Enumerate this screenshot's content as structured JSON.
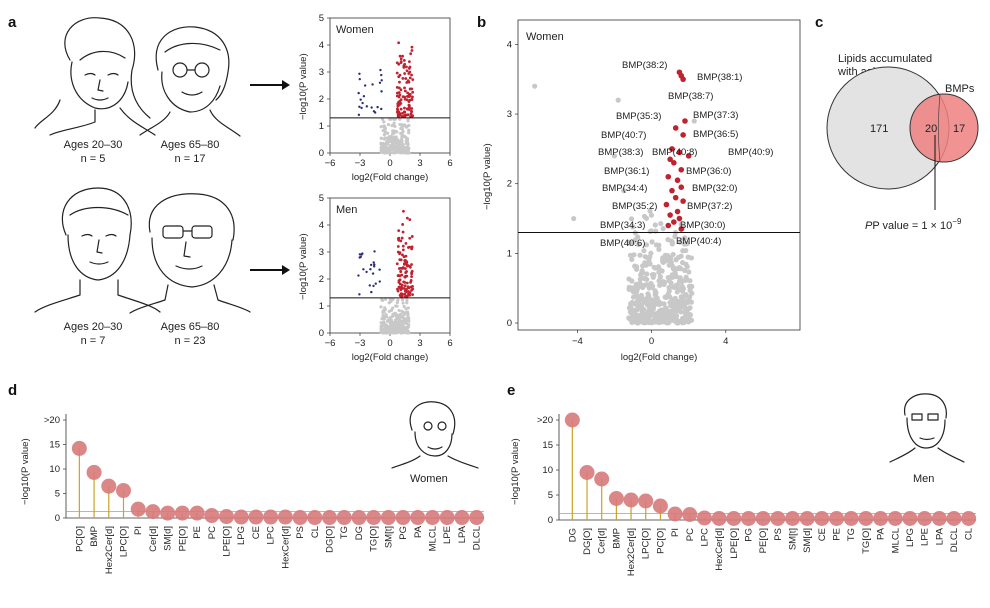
{
  "panels": {
    "a": "a",
    "b": "b",
    "c": "c",
    "d": "d",
    "e": "e"
  },
  "panel_a": {
    "groups": [
      {
        "ages": "Ages 20–30",
        "n_label": "n = 5"
      },
      {
        "ages": "Ages 65–80",
        "n_label": "n = 17"
      },
      {
        "ages": "Ages 20–30",
        "n_label": "n = 7"
      },
      {
        "ages": "Ages 65–80",
        "n_label": "n = 23"
      }
    ],
    "volcano_women_label": "Women",
    "volcano_men_label": "Men",
    "xlabel": "log2(Fold change)",
    "ylabel": "−log10(P value)",
    "xticks": [
      "−6",
      "−3",
      "0",
      "3",
      "6"
    ],
    "yticks": [
      "0",
      "1",
      "2",
      "3",
      "4",
      "5"
    ]
  },
  "panel_b": {
    "label": "Women",
    "xlabel": "log2(Fold change)",
    "ylabel": "−log10(P value)",
    "xticks": [
      "−4",
      "0",
      "4"
    ],
    "yticks": [
      "0",
      "1",
      "2",
      "3",
      "4"
    ],
    "bmp_labels": [
      "BMP(38:2)",
      "BMP(38:1)",
      "BMP(38:7)",
      "BMP(37:3)",
      "BMP(35:3)",
      "BMP(36:5)",
      "BMP(40:7)",
      "BMP(38:3)",
      "BMP(40:8)",
      "BMP(40:9)",
      "BMP(36:1)",
      "BMP(36:0)",
      "BMP(34:4)",
      "BMP(32:0)",
      "BMP(35:2)",
      "BMP(37:2)",
      "BMP(34:3)",
      "BMP(30:0)",
      "BMP(40:6)",
      "BMP(40:4)"
    ]
  },
  "panel_c": {
    "title_line1": "Lipids accumulated",
    "title_line2": "with aging",
    "bmps_label": "BMPs",
    "left_count": "171",
    "overlap_count": "20",
    "right_count": "17",
    "pvalue_text": "P value = 1 × 10",
    "pvalue_exp": "−9"
  },
  "chart_data": [
    {
      "type": "scatter",
      "panel": "d",
      "label": "Women",
      "ylabel": "−log10(P value)",
      "ytick_labels": [
        "0",
        "5",
        "10",
        "15",
        ">20"
      ],
      "categories": [
        "PC[O]",
        "BMP",
        "Hex2Cer[d]",
        "LPC[O]",
        "PI",
        "Cer[d]",
        "SM[d]",
        "PE[O]",
        "PE",
        "PC",
        "LPE[O]",
        "LPG",
        "CE",
        "LPC",
        "HexCer[d]",
        "PS",
        "CL",
        "DG[O]",
        "TG",
        "DG",
        "TG[O]",
        "SM[t]",
        "PG",
        "PA",
        "MLCL",
        "LPE",
        "LPA",
        "DLCL"
      ],
      "values": [
        14.2,
        9.3,
        6.5,
        5.6,
        1.8,
        1.3,
        1.0,
        1.0,
        1.0,
        0.5,
        0.3,
        0.2,
        0.2,
        0.2,
        0.2,
        0.1,
        0.1,
        0.1,
        0.1,
        0.1,
        0.1,
        0.1,
        0.1,
        0.1,
        0.1,
        0.1,
        0.1,
        0.1
      ],
      "ylim": [
        0,
        20
      ]
    },
    {
      "type": "scatter",
      "panel": "e",
      "label": "Men",
      "ylabel": "−log10(P value)",
      "ytick_labels": [
        "0",
        "5",
        "10",
        "15",
        ">20"
      ],
      "categories": [
        "DG",
        "DG[O]",
        "Cer[d]",
        "BMP",
        "Hex2Cer[d]",
        "LPC[O]",
        "PC[O]",
        "PI",
        "PC",
        "LPC",
        "HexCer[d]",
        "LPE[O]",
        "PG",
        "PE[O]",
        "PS",
        "SM[t]",
        "SM[d]",
        "CE",
        "PE",
        "TG",
        "TG[O]",
        "PA",
        "MLCL",
        "LPG",
        "LPE",
        "LPA",
        "DLCL",
        "CL"
      ],
      "values": [
        20,
        9.5,
        8.2,
        4.3,
        4.0,
        3.8,
        2.8,
        1.2,
        1.1,
        0.4,
        0.3,
        0.3,
        0.3,
        0.3,
        0.3,
        0.3,
        0.3,
        0.3,
        0.3,
        0.3,
        0.3,
        0.3,
        0.3,
        0.3,
        0.3,
        0.3,
        0.3,
        0.3
      ],
      "ylim": [
        0,
        20
      ]
    }
  ],
  "colors": {
    "up": "#c0222f",
    "down": "#2b2f7a",
    "ns": "#c8c8c8",
    "lollipop": "#d77a7a",
    "stem": "#c9a227",
    "venn_right": "#f08080",
    "venn_left": "#e3e3e3"
  }
}
